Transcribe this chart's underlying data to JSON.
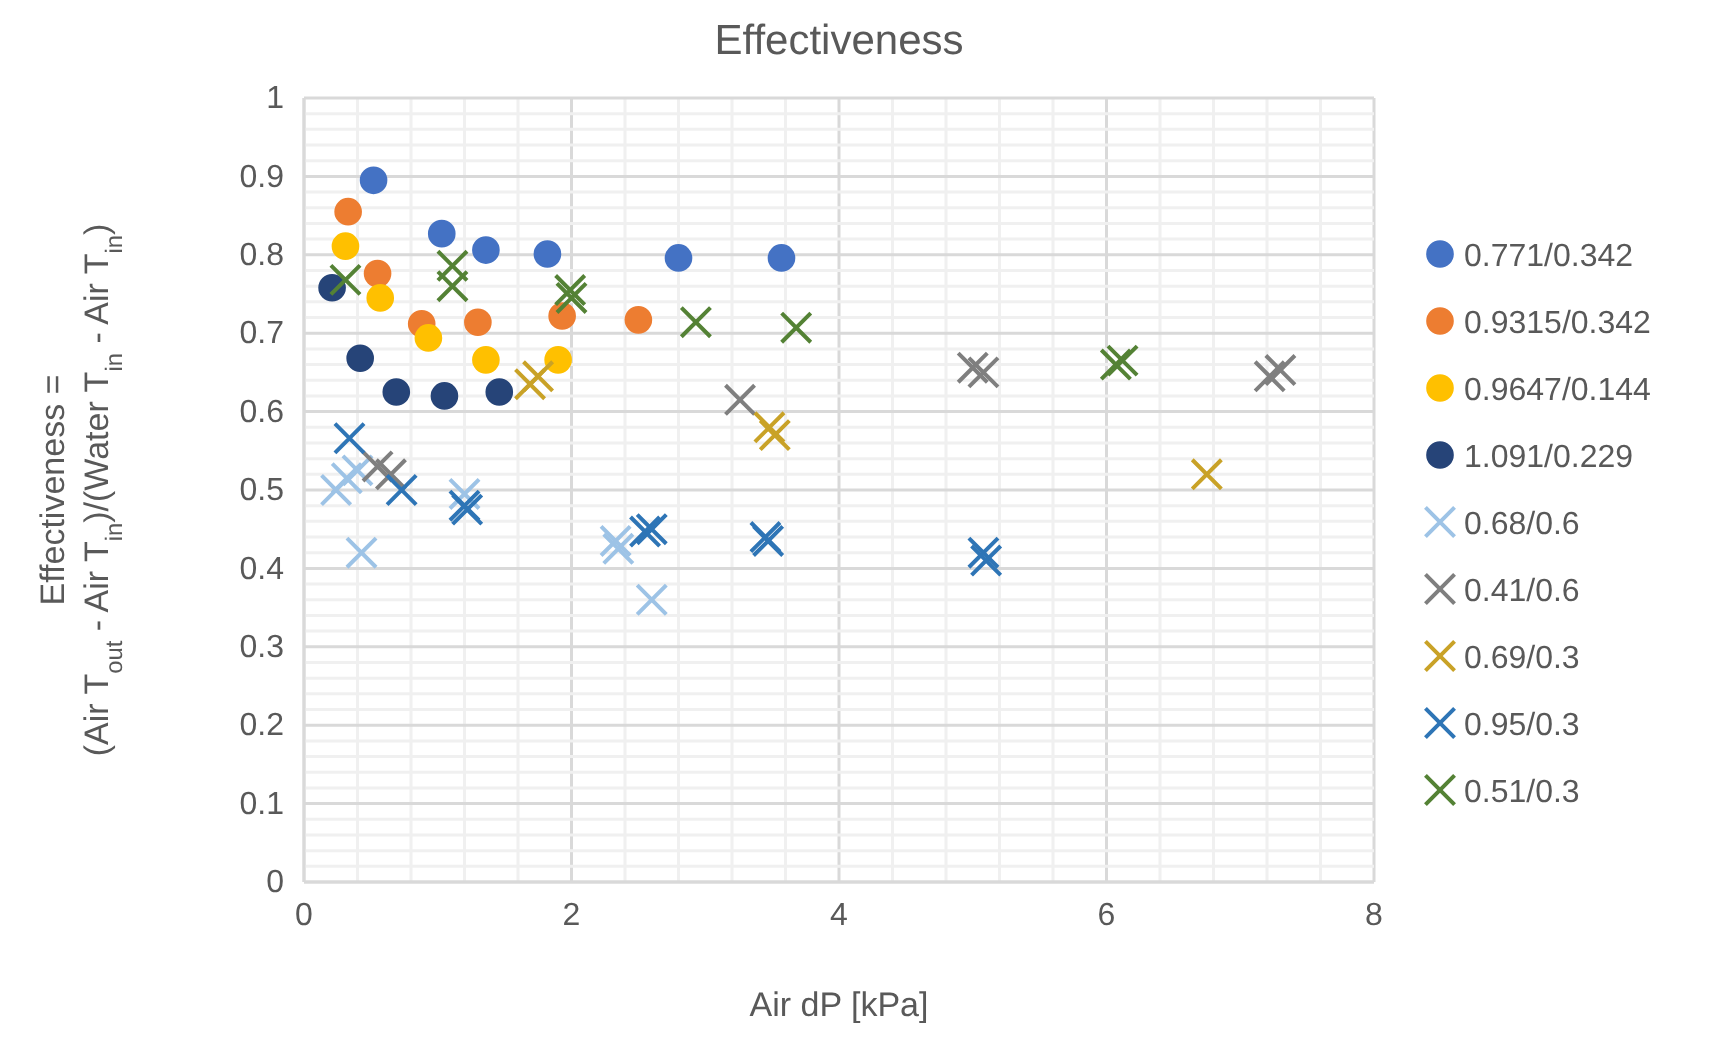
{
  "chart_data": {
    "type": "scatter",
    "title": "Effectiveness",
    "xlabel": "Air dP [kPa]",
    "ylabel": "Effectiveness =\n(Air T$_{out}$ - Air T$_{in}$)/(Water T$_{in}$ - Air T$_{in}$)",
    "xlim": [
      0,
      8
    ],
    "ylim": [
      0,
      1
    ],
    "xticks": [
      0,
      2,
      4,
      6,
      8
    ],
    "yticks": [
      0,
      0.1,
      0.2,
      0.3,
      0.4,
      0.5,
      0.6,
      0.7,
      0.8,
      0.9,
      1
    ],
    "grid": true,
    "legend": "right",
    "series": [
      {
        "name": "0.771/0.342",
        "color": "#4472c4",
        "marker": "circle",
        "x": [
          0.52,
          1.03,
          1.36,
          1.82,
          2.8,
          3.57
        ],
        "values": [
          0.895,
          0.827,
          0.806,
          0.801,
          0.796,
          0.796
        ]
      },
      {
        "name": "0.9315/0.342",
        "color": "#ed7d31",
        "marker": "circle",
        "x": [
          0.33,
          0.55,
          0.88,
          1.3,
          1.93,
          2.5
        ],
        "values": [
          0.855,
          0.776,
          0.712,
          0.714,
          0.722,
          0.717
        ]
      },
      {
        "name": "0.9647/0.144",
        "color": "#ffc000",
        "marker": "circle",
        "x": [
          0.31,
          0.57,
          0.93,
          1.36,
          1.9
        ],
        "values": [
          0.811,
          0.745,
          0.694,
          0.666,
          0.666
        ]
      },
      {
        "name": "1.091/0.229",
        "color": "#264478",
        "marker": "circle",
        "x": [
          0.21,
          0.42,
          0.69,
          1.05,
          1.46
        ],
        "values": [
          0.758,
          0.668,
          0.625,
          0.62,
          0.625
        ]
      },
      {
        "name": "0.68/0.6",
        "color": "#9dc3e6",
        "marker": "cross",
        "x": [
          0.24,
          0.32,
          0.4,
          0.43,
          1.2,
          2.33,
          2.35,
          2.6
        ],
        "values": [
          0.5,
          0.515,
          0.525,
          0.42,
          0.495,
          0.435,
          0.425,
          0.36
        ]
      },
      {
        "name": "0.41/0.6",
        "color": "#7f7f7f",
        "marker": "cross",
        "x": [
          0.55,
          0.65,
          3.26,
          5.0,
          5.08,
          7.22,
          7.3
        ],
        "values": [
          0.53,
          0.52,
          0.615,
          0.656,
          0.65,
          0.645,
          0.653
        ]
      },
      {
        "name": "0.69/0.3",
        "color": "#c9a227",
        "marker": "cross",
        "x": [
          1.69,
          1.75,
          3.48,
          3.52,
          6.75
        ],
        "values": [
          0.635,
          0.645,
          0.58,
          0.57,
          0.52
        ]
      },
      {
        "name": "0.95/0.3",
        "color": "#2e75b6",
        "marker": "cross",
        "x": [
          0.34,
          0.73,
          1.2,
          1.22,
          2.55,
          2.6,
          3.45,
          3.47,
          5.08,
          5.1
        ],
        "values": [
          0.566,
          0.5,
          0.48,
          0.475,
          0.447,
          0.45,
          0.44,
          0.435,
          0.42,
          0.41
        ]
      },
      {
        "name": "0.51/0.3",
        "color": "#548235",
        "marker": "cross",
        "x": [
          0.31,
          1.11,
          1.11,
          1.99,
          2.0,
          2.93,
          3.68,
          6.07,
          6.12
        ],
        "values": [
          0.768,
          0.786,
          0.76,
          0.755,
          0.745,
          0.714,
          0.707,
          0.66,
          0.665
        ]
      }
    ]
  }
}
